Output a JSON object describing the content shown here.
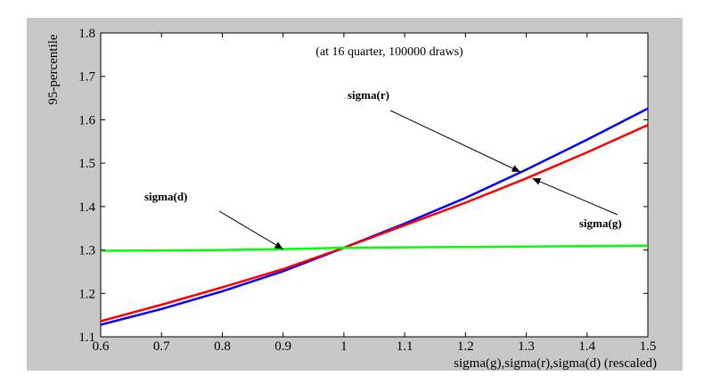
{
  "chart_data": {
    "type": "line",
    "title": "",
    "annotation": "(at 16 quarter, 100000 draws)",
    "xlabel": "sigma(g),sigma(r),sigma(d) (rescaled)",
    "ylabel": "95-percentile",
    "xlim": [
      0.6,
      1.5
    ],
    "ylim": [
      1.1,
      1.8
    ],
    "xticks": [
      "0.6",
      "0.7",
      "0.8",
      "0.9",
      "1",
      "1.1",
      "1.2",
      "1.3",
      "1.4",
      "1.5"
    ],
    "yticks": [
      "1.1",
      "1.2",
      "1.3",
      "1.4",
      "1.5",
      "1.6",
      "1.7",
      "1.8"
    ],
    "grid": false,
    "legend": "none",
    "x": [
      0.6,
      0.7,
      0.8,
      0.9,
      1.0,
      1.1,
      1.2,
      1.3,
      1.4,
      1.5
    ],
    "series": [
      {
        "name": "sigma(r)",
        "color": "#0000ff",
        "values": [
          1.128,
          1.164,
          1.205,
          1.251,
          1.305,
          1.361,
          1.42,
          1.485,
          1.554,
          1.626
        ]
      },
      {
        "name": "sigma(g)",
        "color": "#ff0000",
        "values": [
          1.136,
          1.174,
          1.214,
          1.256,
          1.305,
          1.357,
          1.409,
          1.465,
          1.525,
          1.588
        ]
      },
      {
        "name": "sigma(d)",
        "color": "#00ff00",
        "values": [
          1.298,
          1.299,
          1.3,
          1.302,
          1.305,
          1.306,
          1.307,
          1.308,
          1.309,
          1.31
        ]
      }
    ],
    "callouts": [
      {
        "label": "sigma(r)",
        "target_x": 1.29,
        "target_y": 1.48
      },
      {
        "label": "sigma(g)",
        "target_x": 1.31,
        "target_y": 1.465
      },
      {
        "label": "sigma(d)",
        "target_x": 0.9,
        "target_y": 1.302
      }
    ]
  }
}
